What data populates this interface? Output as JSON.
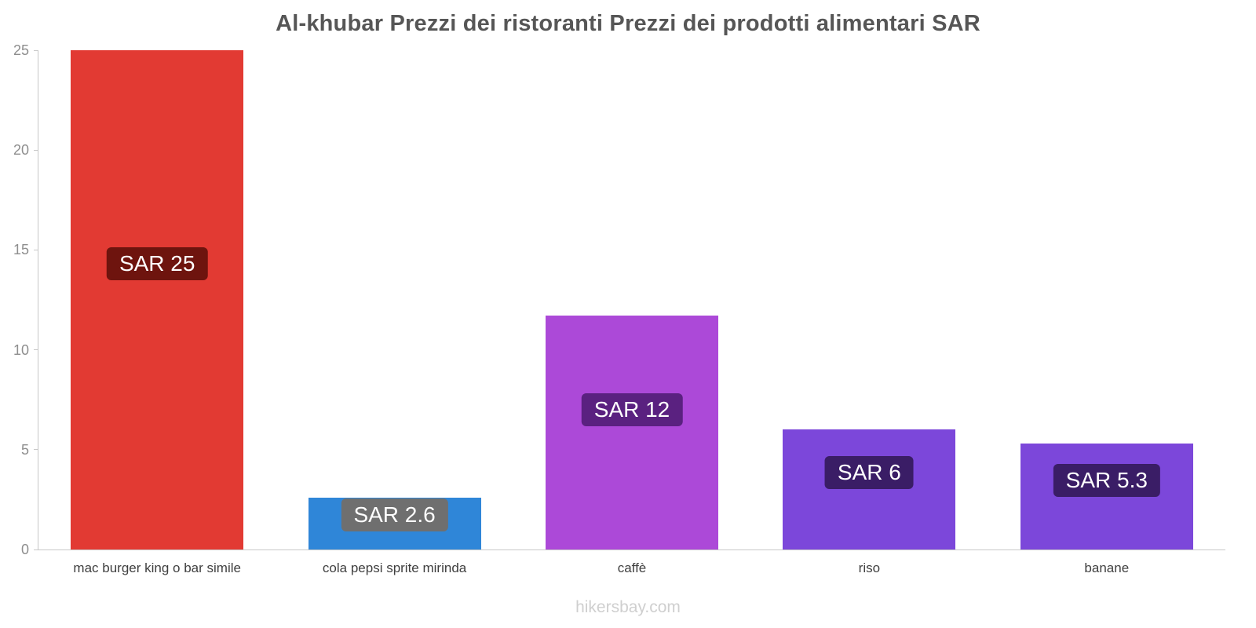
{
  "page": {
    "watermark": "hikersbay.com"
  },
  "chart_data": {
    "type": "bar",
    "title": "Al-khubar Prezzi dei ristoranti Prezzi dei prodotti alimentari SAR",
    "categories": [
      "mac burger king o bar simile",
      "cola pepsi sprite mirinda",
      "caffè",
      "riso",
      "banane"
    ],
    "values": [
      25,
      2.6,
      11.7,
      6,
      5.3
    ],
    "value_labels": [
      "SAR 25",
      "SAR 2.6",
      "SAR 12",
      "SAR 6",
      "SAR 5.3"
    ],
    "bar_colors": [
      "#e23a33",
      "#2f86d8",
      "#ac49d8",
      "#7c47da",
      "#7c47da"
    ],
    "label_bg_colors": [
      "#6e140e",
      "#6f6f6f",
      "#5a2180",
      "#3a1d66",
      "#3a1d66"
    ],
    "currency": "SAR",
    "xlabel": "",
    "ylabel": "",
    "ylim": [
      0,
      25
    ],
    "yticks": [
      0,
      5,
      10,
      15,
      20,
      25
    ],
    "grid": false,
    "legend": false,
    "footer": "hikersbay.com"
  }
}
